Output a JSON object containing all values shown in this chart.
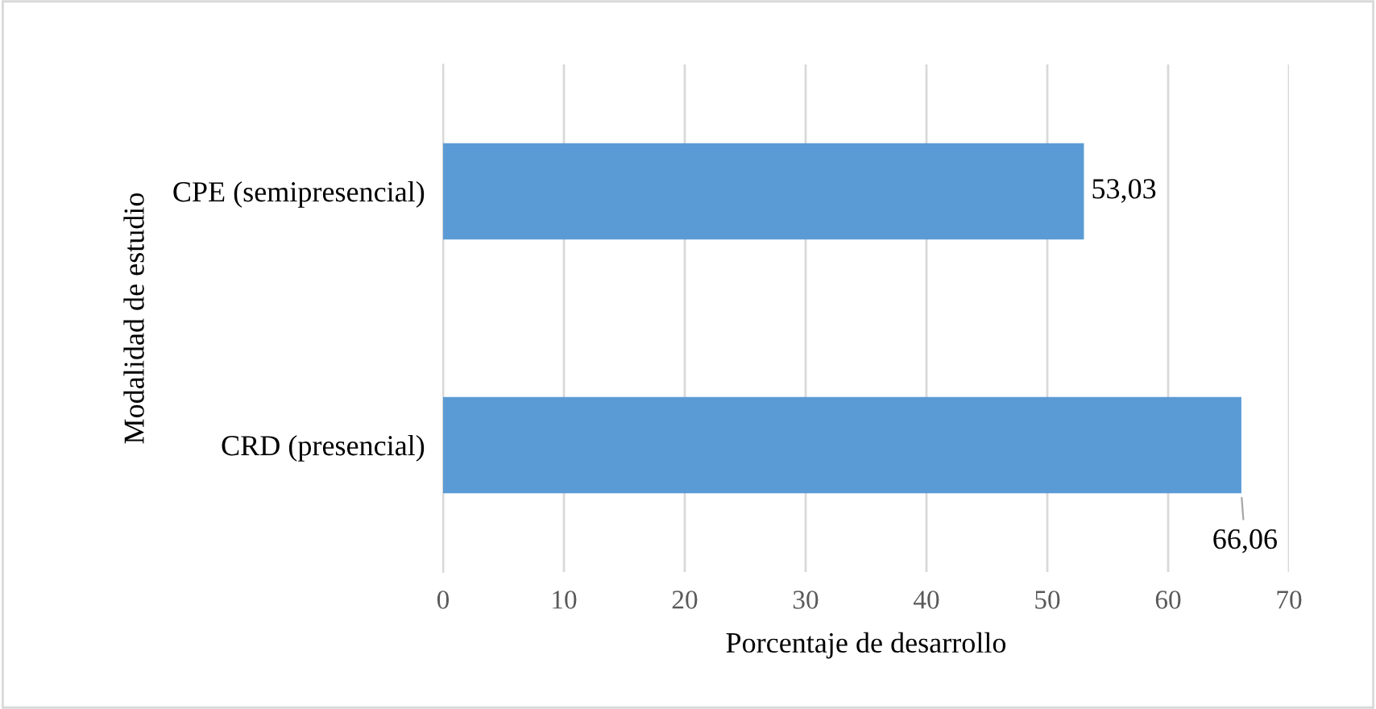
{
  "chart_data": {
    "type": "bar",
    "orientation": "horizontal",
    "categories": [
      "CPE (semipresencial)",
      "CRD (presencial)"
    ],
    "values": [
      53.03,
      66.06
    ],
    "value_labels": [
      "53,03",
      "66,06"
    ],
    "color": "#5b9bd5",
    "xlim": [
      0,
      70
    ],
    "xticks": [
      0,
      10,
      20,
      30,
      40,
      50,
      60,
      70
    ],
    "grid": "x",
    "xlabel": "Porcentaje de desarrollo",
    "ylabel": "Modalidad de estudio"
  }
}
